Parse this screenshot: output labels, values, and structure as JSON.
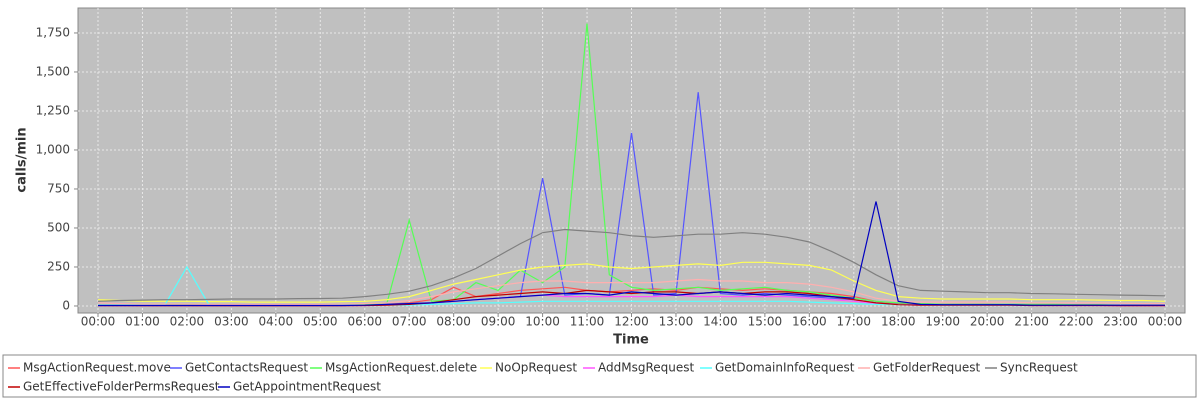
{
  "chart_data": {
    "type": "line",
    "x_label": "Time",
    "y_label": "calls/min",
    "grid": true,
    "xlim": [
      -27,
      1467
    ],
    "ylim": [
      -45,
      1910
    ],
    "xticks": [
      {
        "value": 0,
        "label": "00:00"
      },
      {
        "value": 60,
        "label": "01:00"
      },
      {
        "value": 120,
        "label": "02:00"
      },
      {
        "value": 180,
        "label": "03:00"
      },
      {
        "value": 240,
        "label": "04:00"
      },
      {
        "value": 300,
        "label": "05:00"
      },
      {
        "value": 360,
        "label": "06:00"
      },
      {
        "value": 420,
        "label": "07:00"
      },
      {
        "value": 480,
        "label": "08:00"
      },
      {
        "value": 540,
        "label": "09:00"
      },
      {
        "value": 600,
        "label": "10:00"
      },
      {
        "value": 660,
        "label": "11:00"
      },
      {
        "value": 720,
        "label": "12:00"
      },
      {
        "value": 780,
        "label": "13:00"
      },
      {
        "value": 840,
        "label": "14:00"
      },
      {
        "value": 900,
        "label": "15:00"
      },
      {
        "value": 960,
        "label": "16:00"
      },
      {
        "value": 1020,
        "label": "17:00"
      },
      {
        "value": 1080,
        "label": "18:00"
      },
      {
        "value": 1140,
        "label": "19:00"
      },
      {
        "value": 1200,
        "label": "20:00"
      },
      {
        "value": 1260,
        "label": "21:00"
      },
      {
        "value": 1320,
        "label": "22:00"
      },
      {
        "value": 1380,
        "label": "23:00"
      },
      {
        "value": 1440,
        "label": "00:00"
      }
    ],
    "yticks": [
      0,
      250,
      500,
      750,
      {
        "value": 1000,
        "label": "1,000"
      },
      {
        "value": 1250,
        "label": "1,250"
      },
      {
        "value": 1500,
        "label": "1,500"
      },
      {
        "value": 1750,
        "label": "1,750"
      }
    ],
    "x": [
      0,
      30,
      60,
      90,
      120,
      150,
      180,
      210,
      240,
      270,
      300,
      330,
      360,
      390,
      420,
      450,
      480,
      510,
      540,
      570,
      600,
      630,
      660,
      690,
      720,
      750,
      780,
      810,
      840,
      870,
      900,
      930,
      960,
      990,
      1020,
      1050,
      1080,
      1110,
      1140,
      1170,
      1200,
      1230,
      1260,
      1290,
      1320,
      1350,
      1380,
      1410,
      1440
    ],
    "series": [
      {
        "name": "MsgActionRequest.move",
        "color": "#ff5555",
        "values": [
          5,
          5,
          3,
          3,
          3,
          2,
          2,
          2,
          2,
          2,
          2,
          3,
          5,
          10,
          20,
          40,
          120,
          60,
          80,
          100,
          110,
          120,
          100,
          90,
          100,
          110,
          100,
          120,
          110,
          100,
          110,
          100,
          90,
          80,
          60,
          30,
          15,
          10,
          10,
          10,
          10,
          8,
          8,
          8,
          8,
          6,
          5,
          5,
          5
        ]
      },
      {
        "name": "GetContactsRequest",
        "color": "#5555ff",
        "values": [
          5,
          5,
          5,
          5,
          5,
          5,
          5,
          5,
          5,
          5,
          5,
          5,
          8,
          10,
          15,
          20,
          30,
          40,
          50,
          60,
          820,
          70,
          80,
          70,
          1110,
          70,
          80,
          1370,
          80,
          70,
          80,
          70,
          60,
          50,
          40,
          20,
          10,
          8,
          8,
          8,
          8,
          8,
          5,
          5,
          5,
          5,
          5,
          5,
          5
        ]
      },
      {
        "name": "MsgActionRequest.delete",
        "color": "#55ff55",
        "values": [
          5,
          5,
          5,
          5,
          5,
          5,
          5,
          5,
          5,
          5,
          5,
          5,
          10,
          20,
          550,
          30,
          40,
          150,
          100,
          230,
          150,
          250,
          1810,
          200,
          120,
          100,
          110,
          120,
          100,
          110,
          120,
          100,
          90,
          70,
          50,
          30,
          20,
          15,
          10,
          10,
          10,
          10,
          10,
          10,
          8,
          8,
          5,
          5,
          5
        ]
      },
      {
        "name": "NoOpRequest",
        "color": "#ffff55",
        "values": [
          40,
          35,
          30,
          30,
          30,
          28,
          28,
          25,
          25,
          25,
          25,
          28,
          30,
          40,
          60,
          100,
          140,
          170,
          200,
          230,
          250,
          260,
          270,
          250,
          240,
          250,
          260,
          270,
          260,
          280,
          280,
          270,
          260,
          230,
          160,
          100,
          60,
          50,
          45,
          45,
          45,
          45,
          40,
          40,
          40,
          38,
          35,
          35,
          30
        ]
      },
      {
        "name": "AddMsgRequest",
        "color": "#ff55ff",
        "values": [
          2,
          2,
          2,
          2,
          2,
          2,
          2,
          2,
          2,
          2,
          2,
          2,
          3,
          5,
          10,
          20,
          30,
          40,
          50,
          60,
          70,
          60,
          60,
          60,
          60,
          60,
          70,
          60,
          60,
          60,
          60,
          60,
          50,
          40,
          30,
          15,
          8,
          5,
          5,
          5,
          5,
          5,
          3,
          3,
          3,
          3,
          2,
          2,
          2
        ]
      },
      {
        "name": "GetDomainInfoRequest",
        "color": "#55ffff",
        "values": [
          5,
          5,
          5,
          5,
          250,
          5,
          5,
          5,
          5,
          5,
          5,
          5,
          5,
          5,
          5,
          10,
          15,
          20,
          20,
          25,
          30,
          30,
          30,
          30,
          30,
          30,
          30,
          30,
          30,
          30,
          30,
          30,
          25,
          20,
          15,
          10,
          8,
          5,
          5,
          5,
          5,
          5,
          5,
          5,
          5,
          5,
          5,
          5,
          5
        ]
      },
      {
        "name": "GetFolderRequest",
        "color": "#ffafaf",
        "values": [
          20,
          15,
          12,
          12,
          12,
          10,
          10,
          10,
          10,
          10,
          10,
          12,
          15,
          20,
          35,
          60,
          90,
          110,
          130,
          150,
          160,
          160,
          150,
          150,
          150,
          150,
          160,
          170,
          160,
          160,
          150,
          150,
          140,
          120,
          90,
          50,
          30,
          25,
          25,
          25,
          25,
          25,
          20,
          20,
          20,
          20,
          18,
          15,
          15
        ]
      },
      {
        "name": "SyncRequest",
        "color": "#808080",
        "values": [
          30,
          35,
          38,
          40,
          40,
          42,
          45,
          45,
          45,
          47,
          48,
          50,
          60,
          75,
          95,
          130,
          180,
          240,
          320,
          400,
          470,
          490,
          480,
          470,
          450,
          440,
          450,
          460,
          460,
          470,
          460,
          440,
          410,
          350,
          280,
          200,
          130,
          100,
          95,
          90,
          85,
          85,
          80,
          78,
          75,
          72,
          70,
          68,
          65
        ]
      },
      {
        "name": "GetEffectiveFolderPermsRequest",
        "color": "#c00000",
        "values": [
          2,
          2,
          2,
          2,
          2,
          2,
          2,
          2,
          2,
          2,
          2,
          2,
          3,
          5,
          10,
          20,
          40,
          60,
          70,
          80,
          90,
          80,
          100,
          90,
          80,
          90,
          90,
          80,
          90,
          80,
          90,
          90,
          80,
          60,
          40,
          20,
          8,
          5,
          5,
          5,
          5,
          5,
          3,
          3,
          3,
          3,
          2,
          2,
          2
        ]
      },
      {
        "name": "GetAppointmentRequest",
        "color": "#0000c0",
        "values": [
          3,
          3,
          3,
          3,
          3,
          3,
          3,
          3,
          3,
          3,
          3,
          3,
          5,
          10,
          15,
          20,
          30,
          40,
          50,
          60,
          70,
          80,
          80,
          70,
          90,
          80,
          70,
          80,
          90,
          80,
          70,
          80,
          70,
          60,
          50,
          670,
          30,
          10,
          8,
          8,
          8,
          8,
          5,
          5,
          5,
          5,
          5,
          5,
          5
        ]
      }
    ]
  }
}
